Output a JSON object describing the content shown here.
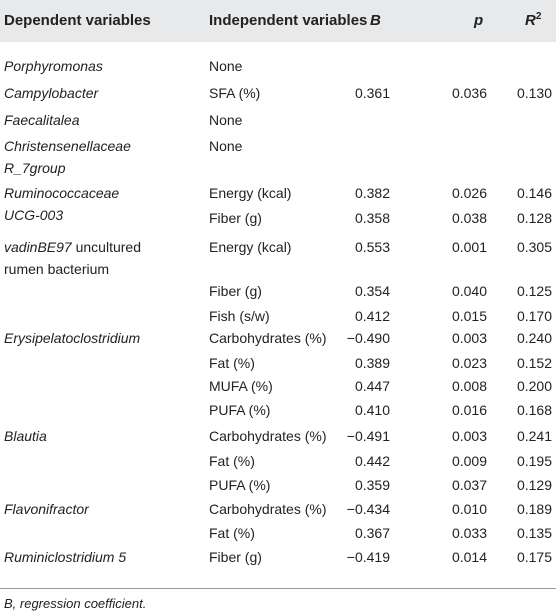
{
  "header": {
    "dependent": "Dependent variables",
    "independent": "Independent variables",
    "b": "B",
    "p": "p",
    "r_base": "R",
    "r_sup": "2"
  },
  "rows": [
    {
      "dep": "Porphyromonas",
      "indep": "None",
      "b": "",
      "p": "",
      "r2": ""
    },
    {
      "dep": "Campylobacter",
      "indep": "SFA (%)",
      "b": "0.361",
      "p": "0.036",
      "r2": "0.130"
    },
    {
      "dep": "Faecalitalea",
      "indep": "None",
      "b": "",
      "p": "",
      "r2": ""
    },
    {
      "dep": "Christensenellaceae",
      "dep2": "R_7group",
      "indep": "None",
      "b": "",
      "p": "",
      "r2": ""
    },
    {
      "dep": "Ruminococcaceae",
      "dep2": "UCG-003",
      "indep": "Energy (kcal)",
      "b": "0.382",
      "p": "0.026",
      "r2": "0.146"
    },
    {
      "dep": "",
      "indep": "Fiber (g)",
      "b": "0.358",
      "p": "0.038",
      "r2": "0.128"
    },
    {
      "dep_italic": "vadinBE97",
      "dep_plain": " uncultured",
      "dep2": "rumen bacterium",
      "indep": "Energy (kcal)",
      "b": "0.553",
      "p": "0.001",
      "r2": "0.305"
    },
    {
      "dep": "",
      "indep": "Fiber (g)",
      "b": "0.354",
      "p": "0.040",
      "r2": "0.125"
    },
    {
      "dep": "",
      "indep": "Fish (s/w)",
      "b": "0.412",
      "p": "0.015",
      "r2": "0.170"
    },
    {
      "dep": "Erysipelatoclostridium",
      "indep": "Carbohydrates (%)",
      "b": "−0.490",
      "p": "0.003",
      "r2": "0.240"
    },
    {
      "dep": "",
      "indep": "Fat (%)",
      "b": "0.389",
      "p": "0.023",
      "r2": "0.152"
    },
    {
      "dep": "",
      "indep": "MUFA (%)",
      "b": "0.447",
      "p": "0.008",
      "r2": "0.200"
    },
    {
      "dep": "",
      "indep": "PUFA (%)",
      "b": "0.410",
      "p": "0.016",
      "r2": "0.168"
    },
    {
      "dep": "Blautia",
      "indep": "Carbohydrates (%)",
      "b": "−0.491",
      "p": "0.003",
      "r2": "0.241"
    },
    {
      "dep": "",
      "indep": "Fat (%)",
      "b": "0.442",
      "p": "0.009",
      "r2": "0.195"
    },
    {
      "dep": "",
      "indep": "PUFA (%)",
      "b": "0.359",
      "p": "0.037",
      "r2": "0.129"
    },
    {
      "dep": "Flavonifractor",
      "indep": "Carbohydrates (%)",
      "b": "−0.434",
      "p": "0.010",
      "r2": "0.189"
    },
    {
      "dep": "",
      "indep": "Fat (%)",
      "b": "0.367",
      "p": "0.033",
      "r2": "0.135"
    },
    {
      "dep": "Ruminiclostridium 5",
      "indep": "Fiber (g)",
      "b": "−0.419",
      "p": "0.014",
      "r2": "0.175"
    }
  ],
  "footer": "B, regression coefficient."
}
